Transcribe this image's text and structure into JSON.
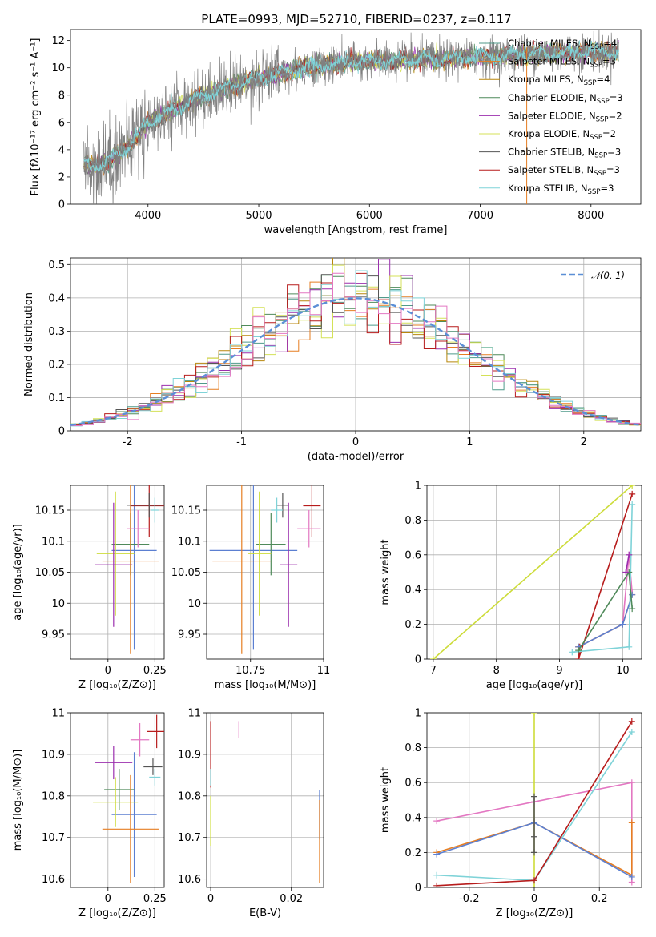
{
  "figure": {
    "title": "PLATE=0993, MJD=52710, FIBERID=0237, z=0.117"
  },
  "palette": {
    "Chabrier MILES": "#4f9a8a",
    "Salpeter MILES": "#e67e22",
    "Kroupa MILES": "#b8860b",
    "Chabrier ELODIE": "#4f8a5a",
    "Salpeter ELODIE": "#9b2fae",
    "Kroupa ELODIE": "#d4e157",
    "Chabrier STELIB": "#555555",
    "Salpeter STELIB": "#b71c1c",
    "Kroupa STELIB": "#7fd3d8",
    "pink": "#e377c2",
    "blue": "#5b7fd1",
    "orange": "#e67e22",
    "lime": "#cddc39",
    "data_grey": "#808080",
    "gauss": "#5b8fd6"
  },
  "chart_data": [
    {
      "type": "line",
      "title": "PLATE=0993, MJD=52710, FIBERID=0237, z=0.117",
      "xlabel": "wavelength [Angstrom, rest frame]",
      "ylabel": "Flux [fλ10⁻¹⁷ erg cm⁻² s⁻¹ A⁻¹]",
      "xlim": [
        3300,
        8450
      ],
      "ylim": [
        0,
        12.8
      ],
      "xticks": [
        4000,
        5000,
        6000,
        7000,
        8000
      ],
      "yticks": [
        0,
        2,
        4,
        6,
        8,
        10,
        12
      ],
      "grid": false,
      "legend_position": "top-right",
      "continuum": {
        "x": [
          3420,
          3550,
          3700,
          3850,
          4000,
          4200,
          4400,
          4600,
          4800,
          5000,
          5200,
          5400,
          5600,
          5800,
          6000,
          6200,
          6400,
          6600,
          6800,
          7000,
          7200,
          7400,
          7600,
          7800,
          8000,
          8200
        ],
        "y": [
          3.0,
          2.8,
          3.5,
          4.5,
          6.0,
          6.8,
          7.6,
          8.2,
          8.8,
          9.2,
          9.6,
          10.0,
          10.2,
          10.4,
          10.5,
          10.5,
          10.6,
          10.6,
          10.7,
          10.8,
          10.9,
          11.0,
          11.0,
          11.1,
          11.2,
          11.1
        ]
      },
      "series": [
        {
          "name": "Chabrier MILES",
          "nssp": "4"
        },
        {
          "name": "Salpeter MILES",
          "nssp": "3"
        },
        {
          "name": "Kroupa MILES",
          "nssp": "4"
        },
        {
          "name": "Chabrier ELODIE",
          "nssp": "3"
        },
        {
          "name": "Salpeter ELODIE",
          "nssp": "2"
        },
        {
          "name": "Kroupa ELODIE",
          "nssp": "2"
        },
        {
          "name": "Chabrier STELIB",
          "nssp": "3"
        },
        {
          "name": "Salpeter STELIB",
          "nssp": "3"
        },
        {
          "name": "Kroupa STELIB",
          "nssp": "3"
        }
      ]
    },
    {
      "type": "line",
      "xlabel": "(data-model)/error",
      "ylabel": "Normed distribution",
      "xlim": [
        -2.5,
        2.5
      ],
      "ylim": [
        0,
        0.52
      ],
      "xticks": [
        -2,
        -1,
        0,
        1,
        2
      ],
      "yticks": [
        0.0,
        0.1,
        0.2,
        0.3,
        0.4,
        0.5
      ],
      "grid": true,
      "legend_position": "top-right",
      "gauss_label": "𝒩(0, 1)",
      "bin_width": 0.1,
      "bin_start": -2.5
    },
    {
      "type": "scatter",
      "xlabel": "Z [log₁₀(Z/Z⊙)]",
      "ylabel": "age [log₁₀(age/yr)]",
      "xlim": [
        -0.2,
        0.3
      ],
      "ylim": [
        9.91,
        10.19
      ],
      "xticks": [
        0.0,
        0.25
      ],
      "yticks": [
        9.95,
        10.0,
        10.05,
        10.1,
        10.15
      ],
      "points": [
        {
          "color": "blue",
          "x": 0.14,
          "xerr": 0.12,
          "y": 10.085,
          "yerr": 0.16
        },
        {
          "color": "Chabrier ELODIE",
          "x": 0.12,
          "xerr": 0.1,
          "y": 10.095,
          "yerr": 0.05
        },
        {
          "color": "lime",
          "x": 0.04,
          "xerr": 0.1,
          "y": 10.08,
          "yerr": 0.1
        },
        {
          "color": "Salpeter ELODIE",
          "x": 0.03,
          "xerr": 0.1,
          "y": 10.062,
          "yerr": 0.1
        },
        {
          "color": "orange",
          "x": 0.12,
          "xerr": 0.15,
          "y": 10.068,
          "yerr": 0.15
        },
        {
          "color": "Salpeter STELIB",
          "x": 0.22,
          "xerr": 0.1,
          "y": 10.157,
          "yerr": 0.05
        },
        {
          "color": "pink",
          "x": 0.16,
          "xerr": 0.06,
          "y": 10.12,
          "yerr": 0.03
        },
        {
          "color": "Chabrier STELIB",
          "x": 0.22,
          "xerr": 0.12,
          "y": 10.158,
          "yerr": 0.02
        },
        {
          "color": "Kroupa STELIB",
          "x": 0.25,
          "xerr": 0.02,
          "y": 10.15,
          "yerr": 0.02
        }
      ]
    },
    {
      "type": "scatter",
      "xlabel": "mass [log₁₀(M/M⊙)]",
      "xlim": [
        10.6,
        11.0
      ],
      "ylim": [
        9.91,
        10.19
      ],
      "xticks": [
        10.75,
        11.0
      ],
      "yticks": [
        9.95,
        10.0,
        10.05,
        10.1,
        10.15
      ],
      "points": [
        {
          "color": "blue",
          "x": 10.76,
          "xerr": 0.15,
          "y": 10.085,
          "yerr": 0.16
        },
        {
          "color": "Chabrier ELODIE",
          "x": 10.82,
          "xerr": 0.05,
          "y": 10.095,
          "yerr": 0.05
        },
        {
          "color": "lime",
          "x": 10.78,
          "xerr": 0.04,
          "y": 10.08,
          "yerr": 0.1
        },
        {
          "color": "Salpeter ELODIE",
          "x": 10.88,
          "xerr": 0.03,
          "y": 10.062,
          "yerr": 0.1
        },
        {
          "color": "orange",
          "x": 10.72,
          "xerr": 0.1,
          "y": 10.068,
          "yerr": 0.15
        },
        {
          "color": "Salpeter STELIB",
          "x": 10.96,
          "xerr": 0.03,
          "y": 10.157,
          "yerr": 0.05
        },
        {
          "color": "pink",
          "x": 10.95,
          "xerr": 0.04,
          "y": 10.12,
          "yerr": 0.03
        },
        {
          "color": "Chabrier STELIB",
          "x": 10.86,
          "xerr": 0.02,
          "y": 10.158,
          "yerr": 0.02
        },
        {
          "color": "Kroupa STELIB",
          "x": 10.84,
          "xerr": 0.02,
          "y": 10.15,
          "yerr": 0.02
        }
      ]
    },
    {
      "type": "line",
      "xlabel": "age  [log₁₀(age/yr)]",
      "ylabel": "mass weight",
      "xlim": [
        6.9,
        10.3
      ],
      "ylim": [
        0,
        1.0
      ],
      "xticks": [
        7,
        8,
        9,
        10
      ],
      "yticks": [
        0.0,
        0.2,
        0.4,
        0.6,
        0.8,
        1.0
      ],
      "grid": true,
      "series": [
        {
          "color": "lime",
          "x": [
            7.0,
            10.15
          ],
          "y": [
            0.0,
            1.0
          ]
        },
        {
          "color": "Salpeter STELIB",
          "x": [
            9.32,
            9.3,
            10.15
          ],
          "y": [
            0.07,
            0.0,
            0.95
          ]
        },
        {
          "color": "pink",
          "x": [
            9.3,
            10.0,
            10.1,
            10.15
          ],
          "y": [
            0.07,
            0.2,
            0.6,
            0.38
          ]
        },
        {
          "color": "orange",
          "x": [
            9.3,
            10.0,
            10.15
          ],
          "y": [
            0.07,
            0.2,
            0.37
          ]
        },
        {
          "color": "blue",
          "x": [
            9.3,
            10.0,
            10.15
          ],
          "y": [
            0.07,
            0.2,
            0.37
          ]
        },
        {
          "color": "Kroupa STELIB",
          "x": [
            9.2,
            10.1,
            10.15
          ],
          "y": [
            0.04,
            0.07,
            0.89
          ]
        },
        {
          "color": "Chabrier ELODIE",
          "x": [
            9.3,
            10.1,
            10.15
          ],
          "y": [
            0.05,
            0.5,
            0.29
          ]
        },
        {
          "color": "Salpeter ELODIE",
          "x": [
            10.05,
            10.1
          ],
          "y": [
            0.5,
            0.6
          ]
        }
      ]
    },
    {
      "type": "scatter",
      "xlabel": "Z [log₁₀(Z/Z⊙)]",
      "ylabel": "mass [log₁₀(M/M⊙)]",
      "xlim": [
        -0.2,
        0.3
      ],
      "ylim": [
        10.58,
        11.0
      ],
      "xticks": [
        0.0,
        0.25
      ],
      "yticks": [
        10.6,
        10.7,
        10.8,
        10.9,
        11.0
      ],
      "points": [
        {
          "color": "blue",
          "x": 0.14,
          "xerr": 0.12,
          "y": 10.755,
          "yerr": 0.15
        },
        {
          "color": "Chabrier ELODIE",
          "x": 0.06,
          "xerr": 0.08,
          "y": 10.815,
          "yerr": 0.05
        },
        {
          "color": "lime",
          "x": 0.04,
          "xerr": 0.12,
          "y": 10.785,
          "yerr": 0.06
        },
        {
          "color": "Salpeter ELODIE",
          "x": 0.03,
          "xerr": 0.1,
          "y": 10.88,
          "yerr": 0.04
        },
        {
          "color": "orange",
          "x": 0.12,
          "xerr": 0.15,
          "y": 10.72,
          "yerr": 0.13
        },
        {
          "color": "Salpeter STELIB",
          "x": 0.26,
          "xerr": 0.05,
          "y": 10.955,
          "yerr": 0.04
        },
        {
          "color": "pink",
          "x": 0.17,
          "xerr": 0.05,
          "y": 10.935,
          "yerr": 0.04
        },
        {
          "color": "Chabrier STELIB",
          "x": 0.24,
          "xerr": 0.05,
          "y": 10.87,
          "yerr": 0.02
        },
        {
          "color": "Kroupa STELIB",
          "x": 0.25,
          "xerr": 0.03,
          "y": 10.845,
          "yerr": 0.02
        }
      ]
    },
    {
      "type": "scatter",
      "xlabel": "E(B-V)",
      "xlim": [
        -0.001,
        0.028
      ],
      "ylim": [
        10.58,
        11.0
      ],
      "xticks": [
        0.0,
        0.02
      ],
      "yticks": [
        10.6,
        10.7,
        10.8,
        10.9,
        11.0
      ],
      "points": [
        {
          "color": "Salpeter STELIB",
          "x": 0.0,
          "y": 10.9,
          "yerr": 0.08
        },
        {
          "color": "pink",
          "x": 0.007,
          "y": 10.96,
          "yerr": 0.02
        },
        {
          "color": "lime",
          "x": 0.0,
          "y": 10.74,
          "yerr": 0.06
        },
        {
          "color": "Kroupa STELIB",
          "x": 0.0,
          "y": 10.845,
          "yerr": 0.02
        },
        {
          "color": "blue",
          "x": 0.027,
          "y": 10.755,
          "yerr": 0.06
        },
        {
          "color": "orange",
          "x": 0.027,
          "y": 10.69,
          "yerr": 0.1
        }
      ]
    },
    {
      "type": "line",
      "xlabel": "Z [log₁₀(Z/Z⊙)]",
      "ylabel": "mass weight",
      "xlim": [
        -0.33,
        0.33
      ],
      "ylim": [
        0,
        1.0
      ],
      "xticks": [
        -0.2,
        0.0,
        0.2
      ],
      "yticks": [
        0.0,
        0.2,
        0.4,
        0.6,
        0.8,
        1.0
      ],
      "grid": true,
      "series": [
        {
          "color": "lime",
          "x": [
            0.0,
            0.0
          ],
          "y": [
            0.0,
            1.0
          ]
        },
        {
          "color": "pink",
          "x": [
            -0.3,
            0.0,
            0.3,
            0.3
          ],
          "y": [
            0.38,
            0.49,
            0.6,
            0.03
          ]
        },
        {
          "color": "orange",
          "x": [
            -0.3,
            0.0,
            0.3,
            0.3
          ],
          "y": [
            0.2,
            0.37,
            0.07,
            0.37
          ]
        },
        {
          "color": "blue",
          "x": [
            -0.3,
            0.0,
            0.3
          ],
          "y": [
            0.19,
            0.37,
            0.06
          ]
        },
        {
          "color": "Kroupa STELIB",
          "x": [
            -0.3,
            0.0,
            0.3
          ],
          "y": [
            0.07,
            0.04,
            0.89
          ]
        },
        {
          "color": "Salpeter STELIB",
          "x": [
            -0.3,
            0.0,
            0.3
          ],
          "y": [
            0.01,
            0.04,
            0.95
          ]
        },
        {
          "color": "Chabrier STELIB",
          "x": [
            0.0,
            0.0,
            0.0
          ],
          "y": [
            0.52,
            0.29,
            0.2
          ]
        }
      ]
    }
  ]
}
